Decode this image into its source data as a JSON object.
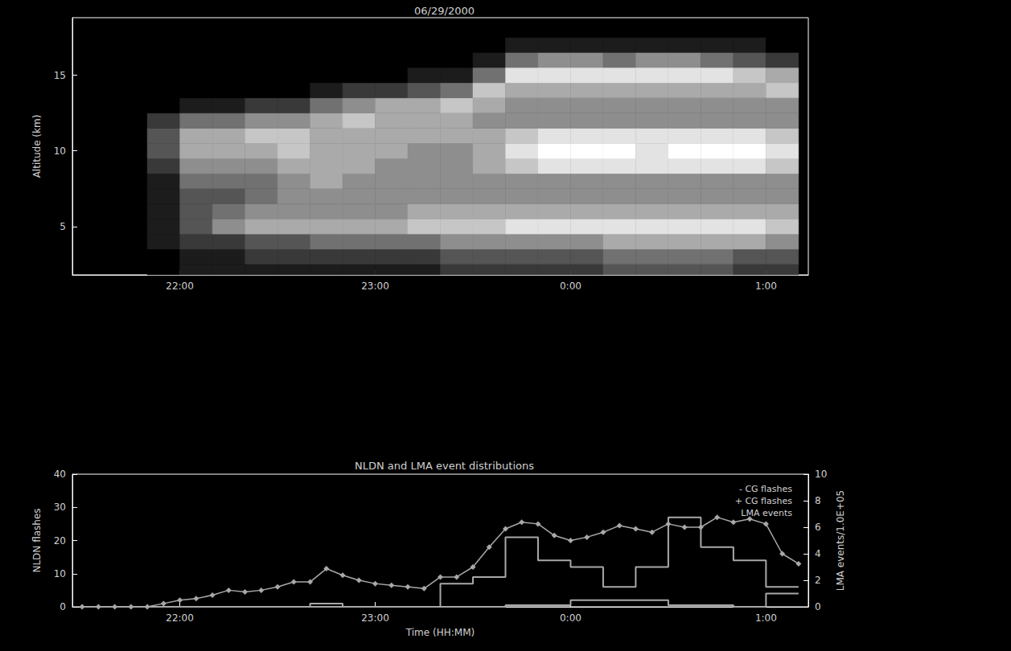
{
  "chart_data": [
    {
      "type": "heatmap",
      "title": "06/29/2000",
      "y_label": "Altitude (km)",
      "color": "#ffffff",
      "x": [
        55,
        65,
        75,
        85,
        95,
        105,
        115,
        125,
        135,
        145,
        155,
        165,
        175,
        185,
        195,
        205,
        215,
        225,
        235,
        245
      ],
      "y": [
        2,
        3,
        4,
        5,
        6,
        7,
        8,
        9,
        10,
        11,
        12,
        13,
        14,
        15,
        16,
        17,
        18
      ],
      "cells": [
        [
          0,
          0,
          1,
          1,
          1,
          1,
          1,
          2,
          3,
          3,
          2,
          0,
          0,
          0,
          0,
          0,
          0
        ],
        [
          1,
          1,
          2,
          3,
          3,
          3,
          4,
          5,
          6,
          6,
          4,
          1,
          0,
          0,
          0,
          0,
          0
        ],
        [
          1,
          1,
          2,
          5,
          4,
          3,
          4,
          5,
          6,
          6,
          4,
          1,
          0,
          0,
          0,
          0,
          0
        ],
        [
          1,
          2,
          3,
          6,
          5,
          4,
          4,
          5,
          6,
          7,
          5,
          2,
          0,
          0,
          0,
          0,
          0
        ],
        [
          1,
          2,
          3,
          6,
          5,
          5,
          5,
          6,
          7,
          7,
          5,
          2,
          0,
          0,
          0,
          0,
          0
        ],
        [
          1,
          2,
          4,
          6,
          5,
          5,
          6,
          6,
          6,
          6,
          6,
          4,
          1,
          0,
          0,
          0,
          0
        ],
        [
          1,
          2,
          4,
          6,
          5,
          5,
          5,
          6,
          6,
          6,
          7,
          5,
          2,
          0,
          0,
          0,
          0
        ],
        [
          1,
          2,
          4,
          6,
          5,
          5,
          5,
          5,
          6,
          6,
          6,
          6,
          2,
          0,
          0,
          0,
          0
        ],
        [
          1,
          2,
          4,
          7,
          6,
          5,
          5,
          5,
          5,
          6,
          6,
          6,
          3,
          1,
          0,
          0,
          0
        ],
        [
          2,
          3,
          5,
          7,
          6,
          5,
          5,
          5,
          5,
          6,
          6,
          7,
          4,
          1,
          0,
          0,
          0
        ],
        [
          2,
          3,
          5,
          7,
          6,
          5,
          5,
          6,
          6,
          6,
          5,
          6,
          7,
          4,
          1,
          0,
          0
        ],
        [
          2,
          3,
          5,
          8,
          6,
          5,
          5,
          7,
          8,
          7,
          5,
          5,
          6,
          8,
          4,
          1,
          0
        ],
        [
          2,
          3,
          5,
          8,
          6,
          5,
          5,
          8,
          9,
          8,
          5,
          5,
          6,
          8,
          5,
          1,
          0
        ],
        [
          2,
          3,
          5,
          8,
          6,
          5,
          5,
          8,
          9,
          8,
          5,
          5,
          6,
          8,
          5,
          1,
          0
        ],
        [
          3,
          4,
          6,
          8,
          6,
          5,
          5,
          8,
          9,
          8,
          5,
          5,
          6,
          8,
          4,
          1,
          0
        ],
        [
          3,
          4,
          6,
          8,
          6,
          5,
          5,
          8,
          8,
          8,
          5,
          5,
          6,
          8,
          5,
          1,
          0
        ],
        [
          3,
          4,
          6,
          8,
          6,
          5,
          5,
          8,
          9,
          8,
          5,
          5,
          6,
          8,
          5,
          1,
          0
        ],
        [
          3,
          4,
          6,
          8,
          6,
          5,
          5,
          8,
          9,
          8,
          5,
          5,
          6,
          8,
          4,
          1,
          0
        ],
        [
          2,
          3,
          6,
          8,
          6,
          5,
          5,
          8,
          9,
          8,
          5,
          5,
          6,
          7,
          3,
          1,
          0
        ],
        [
          2,
          3,
          5,
          7,
          6,
          5,
          5,
          7,
          8,
          7,
          5,
          5,
          7,
          6,
          2,
          0,
          0
        ]
      ],
      "xlim": [
        27,
        253
      ],
      "xticks": [
        {
          "value": 60,
          "label": "22:00"
        },
        {
          "value": 120,
          "label": "23:00"
        },
        {
          "value": 180,
          "label": "0:00"
        },
        {
          "value": 240,
          "label": "1:00"
        }
      ],
      "ylim": [
        1.8,
        18.8
      ],
      "yticks": [
        5,
        10,
        15
      ]
    },
    {
      "type": "line",
      "title": "NLDN and LMA event distributions",
      "x_label": "Time (HH:MM)",
      "y_label": "NLDN flashes",
      "y2_label": "LMA events/1.0E+05",
      "xlim": [
        27,
        253
      ],
      "xticks": [
        {
          "value": 60,
          "label": "22:00"
        },
        {
          "value": 120,
          "label": "23:00"
        },
        {
          "value": 180,
          "label": "0:00"
        },
        {
          "value": 240,
          "label": "1:00"
        }
      ],
      "ylim": [
        0,
        40
      ],
      "yticks": [
        0,
        10,
        20,
        30,
        40
      ],
      "y2lim": [
        0,
        10
      ],
      "y2ticks": [
        0,
        2,
        4,
        6,
        8,
        10
      ],
      "legend": "upper right",
      "series": [
        {
          "name": "- CG flashes",
          "type": "line",
          "marker": "diamond",
          "color": "#a8a8a8",
          "x": [
            30,
            35,
            40,
            45,
            50,
            55,
            60,
            65,
            70,
            75,
            80,
            85,
            90,
            95,
            100,
            105,
            110,
            115,
            120,
            125,
            130,
            135,
            140,
            145,
            150,
            155,
            160,
            165,
            170,
            175,
            180,
            185,
            190,
            195,
            200,
            205,
            210,
            215,
            220,
            225,
            230,
            235,
            240,
            245,
            250
          ],
          "values": [
            0,
            0,
            0,
            0,
            0,
            1,
            2,
            2.5,
            3.5,
            5,
            4.5,
            5,
            6,
            7.5,
            7.5,
            11.5,
            9.5,
            8,
            7,
            6.5,
            6,
            5.5,
            9,
            9,
            12,
            18,
            23.5,
            25.5,
            25,
            21.5,
            20,
            21,
            22.5,
            24.5,
            23.5,
            22.5,
            25,
            24,
            24,
            27,
            25.5,
            26.5,
            25,
            16,
            13
          ]
        },
        {
          "name": "+ CG flashes",
          "type": "step",
          "color": "#a8a8a8",
          "bins": [
            30,
            40,
            50,
            60,
            70,
            80,
            90,
            100,
            110,
            120,
            130,
            140,
            150,
            160,
            170,
            180,
            190,
            200,
            210,
            220,
            230,
            240,
            250
          ],
          "values": [
            0,
            0,
            0,
            0,
            0,
            0,
            0,
            1,
            0,
            0,
            0,
            0,
            0,
            0.5,
            0.5,
            2,
            2,
            2,
            0.5,
            0.5,
            0,
            4
          ]
        },
        {
          "name": "LMA events",
          "type": "step",
          "axis": "y2",
          "color": "#a8a8a8",
          "bins": [
            30,
            40,
            50,
            60,
            70,
            80,
            90,
            100,
            110,
            120,
            130,
            140,
            150,
            160,
            170,
            180,
            190,
            200,
            210,
            220,
            230,
            240,
            250
          ],
          "values": [
            0,
            0,
            0,
            0,
            0,
            0,
            0,
            0,
            0,
            0,
            0,
            1.75,
            2.25,
            5.25,
            3.5,
            3,
            1.5,
            3,
            6.75,
            4.5,
            3.5,
            1.5
          ]
        }
      ]
    }
  ]
}
